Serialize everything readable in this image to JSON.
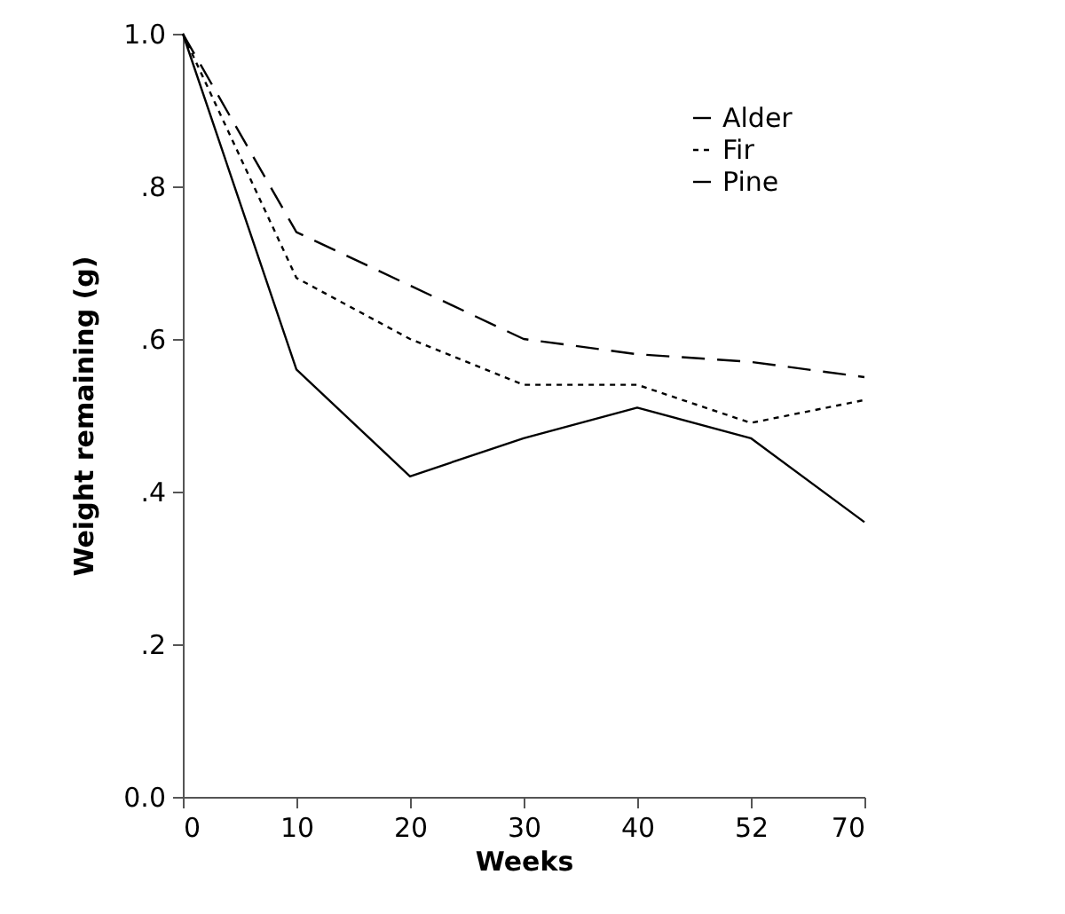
{
  "chart_data": {
    "type": "line",
    "xlabel": "Weeks",
    "ylabel": "Weight remaining (g)",
    "categories": [
      "0",
      "10",
      "20",
      "30",
      "40",
      "52",
      "70"
    ],
    "series": [
      {
        "name": "Alder",
        "color": "#000000",
        "line_style": "solid",
        "values": [
          1.0,
          0.56,
          0.42,
          0.47,
          0.51,
          0.47,
          0.36
        ]
      },
      {
        "name": "Fir",
        "color": "#000000",
        "line_style": "dotted",
        "values": [
          1.0,
          0.68,
          0.6,
          0.54,
          0.54,
          0.49,
          0.52
        ]
      },
      {
        "name": "Pine",
        "color": "#000000",
        "line_style": "dashed",
        "values": [
          1.0,
          0.74,
          0.67,
          0.6,
          0.58,
          0.57,
          0.55
        ]
      }
    ],
    "ylim": [
      0,
      1
    ],
    "yticks": [
      {
        "value": 0,
        "label": "0.0"
      },
      {
        "value": 0.2,
        "label": ".2"
      },
      {
        "value": 0.4,
        "label": ".4"
      },
      {
        "value": 0.6,
        "label": ".6"
      },
      {
        "value": 0.8,
        "label": ".8"
      },
      {
        "value": 1,
        "label": "1.0"
      }
    ],
    "grid": false,
    "legend": "top right",
    "marker": "none"
  }
}
